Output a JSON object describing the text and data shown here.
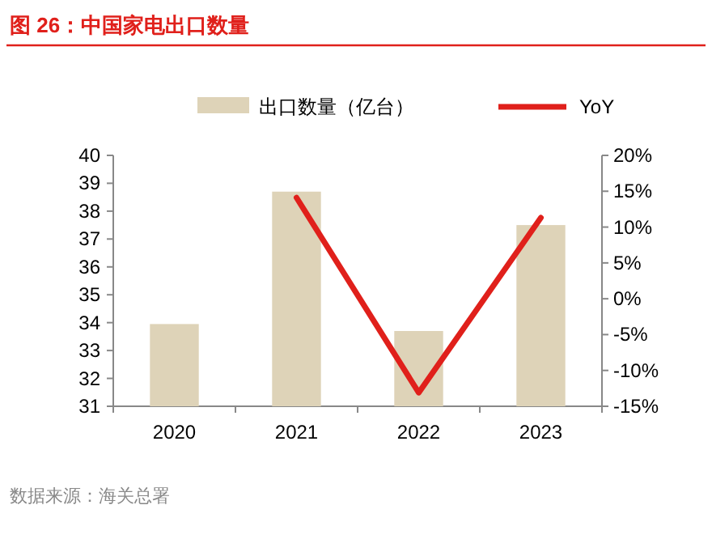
{
  "chart_data": {
    "type": "bar",
    "title": "图 26：中国家电出口数量",
    "categories": [
      "2020",
      "2021",
      "2022",
      "2023"
    ],
    "series": [
      {
        "name": "出口数量（亿台）",
        "color": "#ded3b8",
        "values": [
          33.95,
          38.7,
          33.7,
          37.5
        ]
      },
      {
        "name": "YoY",
        "type": "line",
        "axis": "y2",
        "color": "#e0201b",
        "values": [
          null,
          14.1,
          -13.1,
          11.3
        ]
      }
    ],
    "ylim": [
      31,
      40
    ],
    "yticks": [
      31,
      32,
      33,
      34,
      35,
      36,
      37,
      38,
      39,
      40
    ],
    "y2lim": [
      -15,
      20
    ],
    "y2ticks": [
      {
        "value": -15,
        "label": "-15%"
      },
      {
        "value": -10,
        "label": "-10%"
      },
      {
        "value": -5,
        "label": "-5%"
      },
      {
        "value": 0,
        "label": "0%"
      },
      {
        "value": 5,
        "label": "5%"
      },
      {
        "value": 10,
        "label": "10%"
      },
      {
        "value": 15,
        "label": "15%"
      },
      {
        "value": 20,
        "label": "20%"
      }
    ],
    "legend": "top",
    "grid": false,
    "annotations": [
      "数据来源：海关总署"
    ]
  }
}
